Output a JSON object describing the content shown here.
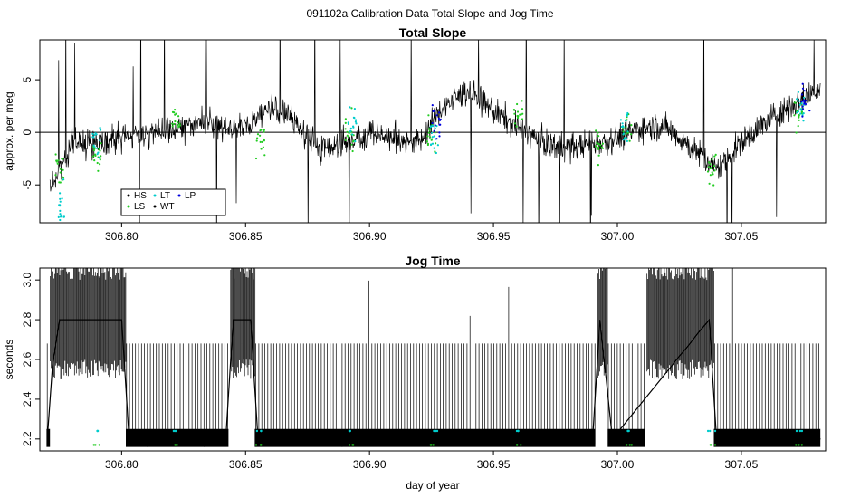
{
  "title": "091102a   Calibration Data Total Slope and Jog Time",
  "colors": {
    "HS": "#000000",
    "LS": "#22cc22",
    "LT": "#00cccc",
    "WT": "#000000",
    "LP": "#0000dd",
    "trace": "#000000"
  },
  "chart_data": [
    {
      "type": "line",
      "title": "Total Slope",
      "xlabel": "",
      "ylabel": "approx. per meg",
      "xlim": [
        306.767,
        307.084
      ],
      "ylim": [
        -8.6,
        8.8
      ],
      "xticks": [
        306.8,
        306.85,
        306.9,
        306.95,
        307.0,
        307.05
      ],
      "xtick_labels": [
        "306.80",
        "306.85",
        "306.90",
        "306.95",
        "307.00",
        "307.05"
      ],
      "yticks": [
        -5,
        0,
        5
      ],
      "ytick_labels": [
        "-5",
        "0",
        "5"
      ],
      "hline": 0,
      "legend": {
        "position": "bottom-left",
        "entries": [
          "HS",
          "LT",
          "LP",
          "LS",
          "WT"
        ]
      },
      "series": [
        {
          "name": "HS",
          "x": [
            306.772,
            306.78,
            306.79,
            306.8,
            306.81,
            306.82,
            306.83,
            306.84,
            306.85,
            306.86,
            306.87,
            306.88,
            306.89,
            306.9,
            306.91,
            306.92,
            306.93,
            306.94,
            306.95,
            306.96,
            306.97,
            306.98,
            306.99,
            307.0,
            307.01,
            307.02,
            307.03,
            307.04,
            307.05,
            307.06,
            307.07,
            307.08
          ],
          "y": [
            -5.0,
            -1.0,
            -1.0,
            -0.5,
            0.0,
            0.0,
            1.0,
            0.5,
            0.5,
            2.5,
            1.0,
            -1.5,
            -1.0,
            0.0,
            -0.5,
            -1.0,
            2.5,
            4.0,
            2.0,
            0.5,
            -1.0,
            -1.5,
            -1.0,
            -0.5,
            0.5,
            0.5,
            -1.5,
            -3.5,
            -1.0,
            1.0,
            2.5,
            4.0
          ]
        },
        {
          "name": "LS",
          "x": [
            306.775,
            306.79,
            306.822,
            306.856,
            306.892,
            306.925,
            306.96,
            306.993,
            307.004,
            307.038,
            307.073
          ],
          "y": [
            -3.5,
            -2.0,
            1.0,
            -0.5,
            0.0,
            -0.5,
            1.5,
            -1.0,
            0.0,
            -3.5,
            2.0
          ]
        },
        {
          "name": "LT",
          "x": [
            306.776,
            306.79,
            306.893,
            306.926,
            307.003,
            307.074
          ],
          "y": [
            -6.5,
            -1.0,
            1.0,
            0.0,
            0.5,
            2.5
          ]
        },
        {
          "name": "LP",
          "x": [
            306.927,
            307.076
          ],
          "y": [
            1.0,
            3.0
          ]
        }
      ]
    },
    {
      "type": "line",
      "title": "Jog Time",
      "xlabel": "day of year",
      "ylabel": "seconds",
      "xlim": [
        306.767,
        307.084
      ],
      "ylim": [
        2.14,
        3.06
      ],
      "xticks": [
        306.8,
        306.85,
        306.9,
        306.95,
        307.0,
        307.05
      ],
      "xtick_labels": [
        "306.80",
        "306.85",
        "306.90",
        "306.95",
        "307.00",
        "307.05"
      ],
      "yticks": [
        2.2,
        2.4,
        2.6,
        2.8,
        3.0
      ],
      "ytick_labels": [
        "2.2",
        "2.4",
        "2.6",
        "2.8",
        "3.0"
      ],
      "series": [
        {
          "name": "Jog",
          "x": [
            306.77,
            306.772,
            306.775,
            306.8,
            306.803,
            306.842,
            306.845,
            306.852,
            306.855,
            306.99,
            306.993,
            306.998,
            307.037,
            307.04,
            307.082
          ],
          "y": [
            2.2,
            2.55,
            2.8,
            2.8,
            2.2,
            2.2,
            2.8,
            2.8,
            2.2,
            2.2,
            2.8,
            2.2,
            2.8,
            2.2,
            2.2
          ]
        },
        {
          "name": "LS",
          "x": [
            306.79,
            306.822,
            306.855,
            306.892,
            306.926,
            306.96,
            307.005,
            307.038,
            307.073
          ],
          "y": [
            2.17,
            2.17,
            2.17,
            2.17,
            2.17,
            2.17,
            2.17,
            2.17,
            2.17
          ]
        },
        {
          "name": "LT",
          "x": [
            306.79,
            306.822,
            306.855,
            306.892,
            306.926,
            306.96,
            307.005,
            307.038,
            307.073
          ],
          "y": [
            2.24,
            2.24,
            2.24,
            2.24,
            2.24,
            2.24,
            2.24,
            2.24,
            2.24
          ]
        }
      ]
    }
  ]
}
